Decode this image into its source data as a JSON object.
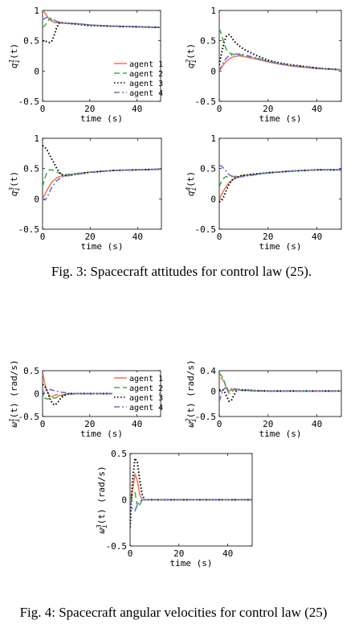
{
  "captions": {
    "fig3": "Fig. 3: Spacecraft attitudes for control law (25).",
    "fig4": "Fig. 4: Spacecraft angular velocities for control law (25)"
  },
  "series_styles": [
    {
      "name": "agent 1",
      "color": "#f07a5c",
      "dash": "none"
    },
    {
      "name": "agent 2",
      "color": "#44b044",
      "dash": "7,4"
    },
    {
      "name": "agent 3",
      "color": "#000000",
      "dash": "1.5,2.5"
    },
    {
      "name": "agent 4",
      "color": "#6d6ddd",
      "dash": "7,3,2,3"
    }
  ],
  "chart_data": [
    {
      "type": "line",
      "ylabel": "q_i^1(t)",
      "xlabel": "time (s)",
      "xlim": [
        0,
        50
      ],
      "ylim": [
        -0.5,
        1
      ],
      "xticks": [
        0,
        20,
        40
      ],
      "yticks": [
        -0.5,
        0,
        0.5,
        1
      ],
      "ytick_labels": [
        "-0.5",
        "0",
        "0.5",
        "1"
      ],
      "legend": "bottom-right",
      "series": [
        {
          "name": "agent 1",
          "x": [
            0,
            1,
            2,
            3,
            4,
            5,
            6,
            8,
            10,
            15,
            20,
            30,
            40,
            50
          ],
          "values": [
            1.0,
            0.96,
            0.9,
            0.85,
            0.82,
            0.8,
            0.8,
            0.79,
            0.79,
            0.78,
            0.76,
            0.74,
            0.73,
            0.72
          ]
        },
        {
          "name": "agent 2",
          "x": [
            0,
            1,
            2,
            3,
            4,
            5,
            6,
            8,
            10,
            15,
            20,
            30,
            40,
            50
          ],
          "values": [
            0.72,
            0.75,
            0.82,
            0.86,
            0.84,
            0.82,
            0.81,
            0.8,
            0.79,
            0.78,
            0.76,
            0.74,
            0.73,
            0.72
          ]
        },
        {
          "name": "agent 3",
          "x": [
            0,
            1,
            2,
            3,
            4,
            5,
            6,
            7,
            8,
            10,
            15,
            20,
            30,
            40,
            50
          ],
          "values": [
            0.5,
            0.5,
            0.48,
            0.47,
            0.5,
            0.6,
            0.72,
            0.79,
            0.8,
            0.79,
            0.77,
            0.75,
            0.74,
            0.73,
            0.72
          ]
        },
        {
          "name": "agent 4",
          "x": [
            0,
            1,
            2,
            3,
            4,
            5,
            6,
            8,
            10,
            15,
            20,
            30,
            40,
            50
          ],
          "values": [
            0.85,
            0.87,
            0.89,
            0.88,
            0.86,
            0.84,
            0.82,
            0.8,
            0.79,
            0.78,
            0.76,
            0.74,
            0.73,
            0.72
          ]
        }
      ]
    },
    {
      "type": "line",
      "ylabel": "q_i^2(t)",
      "xlabel": "time (s)",
      "xlim": [
        0,
        50
      ],
      "ylim": [
        -0.5,
        1
      ],
      "xticks": [
        0,
        20,
        40
      ],
      "yticks": [
        -0.5,
        0,
        0.5,
        1
      ],
      "ytick_labels": [
        "-0.5",
        "0",
        "0.5",
        "1"
      ],
      "series": [
        {
          "name": "agent 1",
          "x": [
            0,
            2,
            4,
            6,
            8,
            10,
            15,
            20,
            25,
            30,
            40,
            50
          ],
          "values": [
            0.0,
            0.12,
            0.2,
            0.24,
            0.25,
            0.24,
            0.2,
            0.15,
            0.11,
            0.08,
            0.04,
            0.02
          ]
        },
        {
          "name": "agent 2",
          "x": [
            0,
            1,
            2,
            3,
            4,
            6,
            8,
            10,
            15,
            20,
            25,
            30,
            40,
            50
          ],
          "values": [
            0.7,
            0.6,
            0.45,
            0.35,
            0.3,
            0.27,
            0.27,
            0.26,
            0.21,
            0.16,
            0.12,
            0.09,
            0.05,
            0.02
          ]
        },
        {
          "name": "agent 3",
          "x": [
            0,
            1,
            2,
            3,
            4,
            5,
            6,
            8,
            10,
            15,
            20,
            25,
            30,
            40,
            50
          ],
          "values": [
            0.1,
            0.3,
            0.48,
            0.58,
            0.6,
            0.56,
            0.5,
            0.42,
            0.36,
            0.26,
            0.18,
            0.13,
            0.1,
            0.05,
            0.02
          ]
        },
        {
          "name": "agent 4",
          "x": [
            0,
            1,
            2,
            3,
            4,
            6,
            8,
            10,
            15,
            20,
            25,
            30,
            40,
            50
          ],
          "values": [
            0.0,
            0.08,
            0.16,
            0.22,
            0.25,
            0.28,
            0.28,
            0.27,
            0.22,
            0.16,
            0.12,
            0.09,
            0.05,
            0.02
          ]
        }
      ]
    },
    {
      "type": "line",
      "ylabel": "q_i^3(t)",
      "xlabel": "time (s)",
      "xlim": [
        0,
        50
      ],
      "ylim": [
        -0.5,
        1
      ],
      "xticks": [
        0,
        20,
        40
      ],
      "yticks": [
        -0.5,
        0,
        0.5,
        1
      ],
      "ytick_labels": [
        "-0.5",
        "0",
        "0.5",
        "1"
      ],
      "series": [
        {
          "name": "agent 1",
          "x": [
            0,
            2,
            4,
            6,
            8,
            10,
            15,
            20,
            30,
            40,
            50
          ],
          "values": [
            0.0,
            0.15,
            0.28,
            0.35,
            0.38,
            0.39,
            0.42,
            0.44,
            0.47,
            0.48,
            0.49
          ]
        },
        {
          "name": "agent 2",
          "x": [
            0,
            1,
            2,
            3,
            4,
            5,
            6,
            8,
            10,
            15,
            20,
            30,
            40,
            50
          ],
          "values": [
            0.2,
            0.35,
            0.45,
            0.48,
            0.48,
            0.46,
            0.44,
            0.41,
            0.4,
            0.42,
            0.44,
            0.47,
            0.48,
            0.49
          ]
        },
        {
          "name": "agent 3",
          "x": [
            0,
            1,
            2,
            3,
            4,
            5,
            6,
            7,
            8,
            10,
            15,
            20,
            30,
            40,
            50
          ],
          "values": [
            0.88,
            0.85,
            0.8,
            0.72,
            0.65,
            0.58,
            0.5,
            0.44,
            0.4,
            0.38,
            0.41,
            0.44,
            0.47,
            0.48,
            0.49
          ]
        },
        {
          "name": "agent 4",
          "x": [
            0,
            1,
            2,
            3,
            4,
            6,
            8,
            10,
            15,
            20,
            30,
            40,
            50
          ],
          "values": [
            0.0,
            -0.02,
            0.03,
            0.12,
            0.2,
            0.3,
            0.36,
            0.38,
            0.41,
            0.44,
            0.47,
            0.48,
            0.49
          ]
        }
      ]
    },
    {
      "type": "line",
      "ylabel": "q_i^4(t)",
      "xlabel": "time (s)",
      "xlim": [
        0,
        50
      ],
      "ylim": [
        -0.5,
        1
      ],
      "xticks": [
        0,
        20,
        40
      ],
      "yticks": [
        -0.5,
        0,
        0.5,
        1
      ],
      "ytick_labels": [
        "-0.5",
        "0",
        "0.5",
        "1"
      ],
      "series": [
        {
          "name": "agent 1",
          "x": [
            0,
            2,
            4,
            6,
            8,
            10,
            15,
            20,
            30,
            40,
            50
          ],
          "values": [
            0.0,
            0.15,
            0.27,
            0.33,
            0.36,
            0.38,
            0.41,
            0.43,
            0.46,
            0.48,
            0.48
          ]
        },
        {
          "name": "agent 2",
          "x": [
            0,
            1,
            2,
            3,
            4,
            5,
            6,
            8,
            10,
            15,
            20,
            30,
            40,
            50
          ],
          "values": [
            0.2,
            0.3,
            0.35,
            0.37,
            0.37,
            0.37,
            0.37,
            0.38,
            0.39,
            0.41,
            0.43,
            0.46,
            0.48,
            0.48
          ]
        },
        {
          "name": "agent 3",
          "x": [
            0,
            1,
            2,
            3,
            4,
            5,
            6,
            8,
            10,
            15,
            20,
            30,
            40,
            50
          ],
          "values": [
            -0.05,
            -0.03,
            0.05,
            0.15,
            0.24,
            0.3,
            0.34,
            0.37,
            0.39,
            0.41,
            0.43,
            0.46,
            0.48,
            0.48
          ]
        },
        {
          "name": "agent 4",
          "x": [
            0,
            1,
            2,
            3,
            4,
            6,
            8,
            10,
            15,
            20,
            30,
            40,
            50
          ],
          "values": [
            0.55,
            0.54,
            0.5,
            0.45,
            0.4,
            0.36,
            0.36,
            0.37,
            0.4,
            0.43,
            0.46,
            0.48,
            0.48
          ]
        }
      ]
    },
    {
      "type": "line",
      "ylabel": "ω_i^1(t) (rad/s)",
      "xlabel": "time (s)",
      "xlim": [
        0,
        50
      ],
      "ylim": [
        -0.5,
        0.5
      ],
      "xticks": [
        0,
        20,
        40
      ],
      "yticks": [
        -0.5,
        0,
        0.5
      ],
      "ytick_labels": [
        "-0.5",
        "0",
        "0.5"
      ],
      "legend": "top-right",
      "series": [
        {
          "name": "agent 1",
          "x": [
            0,
            1,
            2,
            3,
            4,
            5,
            6,
            7,
            8,
            10,
            12,
            15,
            20,
            30,
            40,
            50
          ],
          "values": [
            0.48,
            0.2,
            0.05,
            -0.05,
            -0.07,
            -0.04,
            -0.02,
            -0.05,
            -0.03,
            -0.01,
            0.0,
            0.0,
            0.0,
            0.0,
            0.0,
            0.0
          ]
        },
        {
          "name": "agent 2",
          "x": [
            0,
            1,
            2,
            3,
            4,
            5,
            6,
            8,
            10,
            15,
            20,
            30,
            40,
            50
          ],
          "values": [
            0.1,
            -0.1,
            -0.12,
            -0.1,
            -0.09,
            -0.1,
            -0.08,
            -0.05,
            -0.02,
            0.0,
            0.0,
            0.0,
            0.0,
            0.0
          ]
        },
        {
          "name": "agent 3",
          "x": [
            0,
            1,
            2,
            3,
            4,
            5,
            6,
            7,
            8,
            10,
            12,
            15,
            20,
            30,
            40,
            50
          ],
          "values": [
            0.2,
            0.15,
            0.05,
            -0.1,
            -0.2,
            -0.25,
            -0.22,
            -0.15,
            -0.08,
            -0.02,
            0.0,
            0.0,
            0.0,
            0.0,
            0.0,
            0.0
          ]
        },
        {
          "name": "agent 4",
          "x": [
            0,
            1,
            2,
            3,
            4,
            5,
            6,
            8,
            10,
            12,
            15,
            20,
            30,
            40,
            50
          ],
          "values": [
            -0.08,
            0.08,
            0.1,
            0.09,
            0.08,
            0.06,
            0.05,
            0.03,
            0.02,
            0.0,
            0.0,
            0.0,
            0.0,
            0.0,
            0.0
          ]
        }
      ]
    },
    {
      "type": "line",
      "ylabel": "ω_i^2(t) (rad/s)",
      "xlabel": "time (s)",
      "xlim": [
        0,
        50
      ],
      "ylim": [
        -0.5,
        0.4
      ],
      "xticks": [
        0,
        20,
        40
      ],
      "yticks": [
        -0.5,
        0
      ],
      "ytick_labels": [
        "-0.5",
        "0"
      ],
      "extra_ytick_label": "0.4",
      "series": [
        {
          "name": "agent 1",
          "x": [
            0,
            1,
            2,
            3,
            4,
            5,
            6,
            7,
            8,
            10,
            12,
            15,
            20,
            30,
            40,
            50
          ],
          "values": [
            0.25,
            0.25,
            0.18,
            0.05,
            0.0,
            0.02,
            0.05,
            0.04,
            0.02,
            0.01,
            0.01,
            0.0,
            0.0,
            0.0,
            0.0,
            0.0
          ]
        },
        {
          "name": "agent 2",
          "x": [
            0,
            1,
            2,
            3,
            4,
            5,
            6,
            7,
            8,
            10,
            12,
            15,
            20,
            30,
            40,
            50
          ],
          "values": [
            0.35,
            0.3,
            0.2,
            0.05,
            -0.05,
            -0.02,
            0.02,
            0.03,
            0.02,
            0.01,
            0.01,
            0.0,
            0.0,
            0.0,
            0.0,
            0.0
          ]
        },
        {
          "name": "agent 3",
          "x": [
            0,
            1,
            2,
            3,
            4,
            5,
            6,
            7,
            8,
            10,
            12,
            15,
            20,
            30,
            40,
            50
          ],
          "values": [
            0.02,
            0.03,
            0.0,
            -0.1,
            -0.2,
            -0.18,
            -0.08,
            0.0,
            0.03,
            0.02,
            0.02,
            0.01,
            0.0,
            0.0,
            0.0,
            0.0
          ]
        },
        {
          "name": "agent 4",
          "x": [
            0,
            1,
            2,
            3,
            4,
            5,
            6,
            7,
            8,
            10,
            12,
            15,
            20,
            30,
            40,
            50
          ],
          "values": [
            -0.2,
            -0.05,
            0.05,
            0.06,
            0.05,
            0.04,
            0.04,
            0.03,
            0.03,
            0.02,
            0.02,
            0.01,
            0.0,
            0.0,
            0.0,
            0.0
          ]
        }
      ]
    },
    {
      "type": "line",
      "ylabel": "ω_i^3(t) (rad/s)",
      "xlabel": "time (s)",
      "xlim": [
        0,
        50
      ],
      "ylim": [
        -0.5,
        0.5
      ],
      "xticks": [
        0,
        20,
        40
      ],
      "yticks": [
        -0.5,
        0,
        0.5
      ],
      "ytick_labels": [
        "-0.5",
        "0",
        "0.5"
      ],
      "series": [
        {
          "name": "agent 1",
          "x": [
            0,
            1,
            2,
            3,
            4,
            5,
            6,
            8,
            10,
            15,
            20,
            30,
            40,
            50
          ],
          "values": [
            0.0,
            0.1,
            0.28,
            0.2,
            0.05,
            0.0,
            0.0,
            0.0,
            0.0,
            0.0,
            0.0,
            0.0,
            0.0,
            0.0
          ]
        },
        {
          "name": "agent 2",
          "x": [
            0,
            1,
            2,
            3,
            4,
            5,
            6,
            8,
            10,
            15,
            20,
            30,
            40,
            50
          ],
          "values": [
            0.0,
            0.05,
            0.08,
            -0.08,
            -0.05,
            0.0,
            0.0,
            0.0,
            0.0,
            0.0,
            0.0,
            0.0,
            0.0,
            0.0
          ]
        },
        {
          "name": "agent 3",
          "x": [
            0,
            1,
            2,
            3,
            4,
            5,
            6,
            8,
            10,
            15,
            20,
            30,
            40,
            50
          ],
          "values": [
            -0.3,
            0.2,
            0.45,
            0.4,
            0.2,
            0.05,
            0.0,
            0.0,
            0.0,
            0.0,
            0.0,
            0.0,
            0.0,
            0.0
          ]
        },
        {
          "name": "agent 4",
          "x": [
            0,
            1,
            2,
            3,
            4,
            5,
            6,
            8,
            10,
            15,
            20,
            30,
            40,
            50
          ],
          "values": [
            0.0,
            -0.1,
            -0.12,
            -0.05,
            -0.02,
            0.0,
            0.0,
            0.0,
            0.0,
            0.0,
            0.0,
            0.0,
            0.0,
            0.0
          ]
        }
      ]
    }
  ]
}
